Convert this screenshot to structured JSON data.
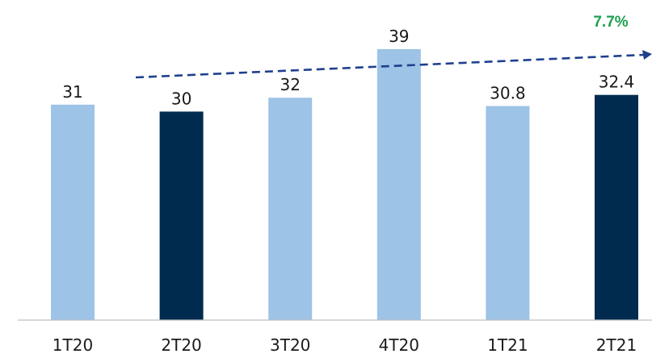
{
  "chart_data": {
    "type": "bar",
    "categories": [
      "1T20",
      "2T20",
      "3T20",
      "4T20",
      "1T21",
      "2T21"
    ],
    "values": [
      31,
      30,
      32,
      39,
      30.8,
      32.4
    ],
    "value_labels": [
      "31",
      "30",
      "32",
      "39",
      "30.8",
      "32.4"
    ],
    "highlighted": [
      false,
      true,
      false,
      false,
      false,
      true
    ],
    "ylim": [
      0,
      42
    ],
    "title": "",
    "xlabel": "",
    "ylabel": "",
    "grid": false,
    "annotation": {
      "label": "7.7%",
      "kind": "dashed-trend-arrow"
    },
    "colors": {
      "bar": "#9dc3e6",
      "bar_highlight": "#002b4f",
      "trend": "#1f3f8f",
      "annotation_text": "#1ea050",
      "axis": "#bfbfbf"
    }
  }
}
